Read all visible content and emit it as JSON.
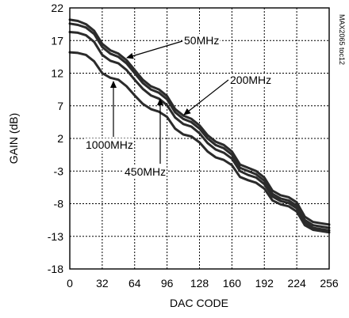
{
  "chart_data": {
    "type": "line",
    "title": "",
    "xlabel": "DAC CODE",
    "ylabel": "GAIN (dB)",
    "xlim": [
      0,
      256
    ],
    "ylim": [
      -18,
      22
    ],
    "xticks": [
      "0",
      "32",
      "64",
      "96",
      "128",
      "160",
      "192",
      "224",
      "256"
    ],
    "yticks": [
      "22",
      "17",
      "12",
      "7",
      "2",
      "-3",
      "-8",
      "-13",
      "-18"
    ],
    "grid": true,
    "side_note": "MAX2065 toc12",
    "annotations": [
      "50MHz",
      "200MHz",
      "1000MHz",
      "450MHz"
    ],
    "series": [
      {
        "name": "50MHz",
        "x": [
          0,
          8,
          16,
          24,
          32,
          40,
          48,
          56,
          64,
          72,
          80,
          88,
          96,
          104,
          112,
          120,
          128,
          136,
          144,
          152,
          160,
          168,
          176,
          184,
          192,
          200,
          208,
          216,
          224,
          232,
          240,
          248,
          256
        ],
        "values": [
          20.2,
          20.0,
          19.5,
          18.5,
          16.5,
          15.5,
          15.0,
          14.0,
          12.5,
          11.0,
          10.0,
          9.5,
          8.5,
          6.5,
          5.5,
          5.0,
          4.0,
          2.5,
          1.5,
          1.0,
          0.0,
          -2.0,
          -2.5,
          -3.0,
          -4.0,
          -6.0,
          -6.7,
          -7.0,
          -7.8,
          -10.0,
          -10.8,
          -11.0,
          -11.2
        ]
      },
      {
        "name": "200MHz",
        "x": [
          0,
          8,
          16,
          24,
          32,
          40,
          48,
          56,
          64,
          72,
          80,
          88,
          96,
          104,
          112,
          120,
          128,
          136,
          144,
          152,
          160,
          168,
          176,
          184,
          192,
          200,
          208,
          216,
          224,
          232,
          240,
          248,
          256
        ],
        "values": [
          19.6,
          19.4,
          19.0,
          18.0,
          16.0,
          15.0,
          14.5,
          13.5,
          12.0,
          10.5,
          9.5,
          9.0,
          8.0,
          6.0,
          5.0,
          4.5,
          3.5,
          2.0,
          1.0,
          0.5,
          -0.5,
          -2.5,
          -3.0,
          -3.5,
          -4.5,
          -6.5,
          -7.2,
          -7.5,
          -8.3,
          -10.5,
          -11.3,
          -11.5,
          -11.7
        ]
      },
      {
        "name": "450MHz",
        "x": [
          0,
          8,
          16,
          24,
          32,
          40,
          48,
          56,
          64,
          72,
          80,
          88,
          96,
          104,
          112,
          120,
          128,
          136,
          144,
          152,
          160,
          168,
          176,
          184,
          192,
          200,
          208,
          216,
          224,
          232,
          240,
          248,
          256
        ],
        "values": [
          18.3,
          18.2,
          17.8,
          16.8,
          14.8,
          13.9,
          13.5,
          12.5,
          11.0,
          9.6,
          8.6,
          8.1,
          7.1,
          5.2,
          4.2,
          3.8,
          2.8,
          1.3,
          0.3,
          -0.2,
          -1.1,
          -3.0,
          -3.6,
          -4.0,
          -5.0,
          -6.9,
          -7.6,
          -7.9,
          -8.7,
          -10.9,
          -11.7,
          -11.9,
          -12.1
        ]
      },
      {
        "name": "1000MHz",
        "x": [
          0,
          8,
          16,
          24,
          32,
          40,
          48,
          56,
          64,
          72,
          80,
          88,
          96,
          104,
          112,
          120,
          128,
          136,
          144,
          152,
          160,
          168,
          176,
          184,
          192,
          200,
          208,
          216,
          224,
          232,
          240,
          248,
          256
        ],
        "values": [
          15.2,
          15.1,
          14.8,
          13.8,
          12.0,
          11.3,
          11.0,
          10.0,
          8.6,
          7.3,
          6.5,
          6.1,
          5.3,
          3.5,
          2.6,
          2.3,
          1.4,
          0.0,
          -0.9,
          -1.3,
          -2.1,
          -3.9,
          -4.4,
          -4.8,
          -5.7,
          -7.5,
          -8.1,
          -8.4,
          -9.2,
          -11.3,
          -12.0,
          -12.2,
          -12.4
        ]
      }
    ]
  }
}
